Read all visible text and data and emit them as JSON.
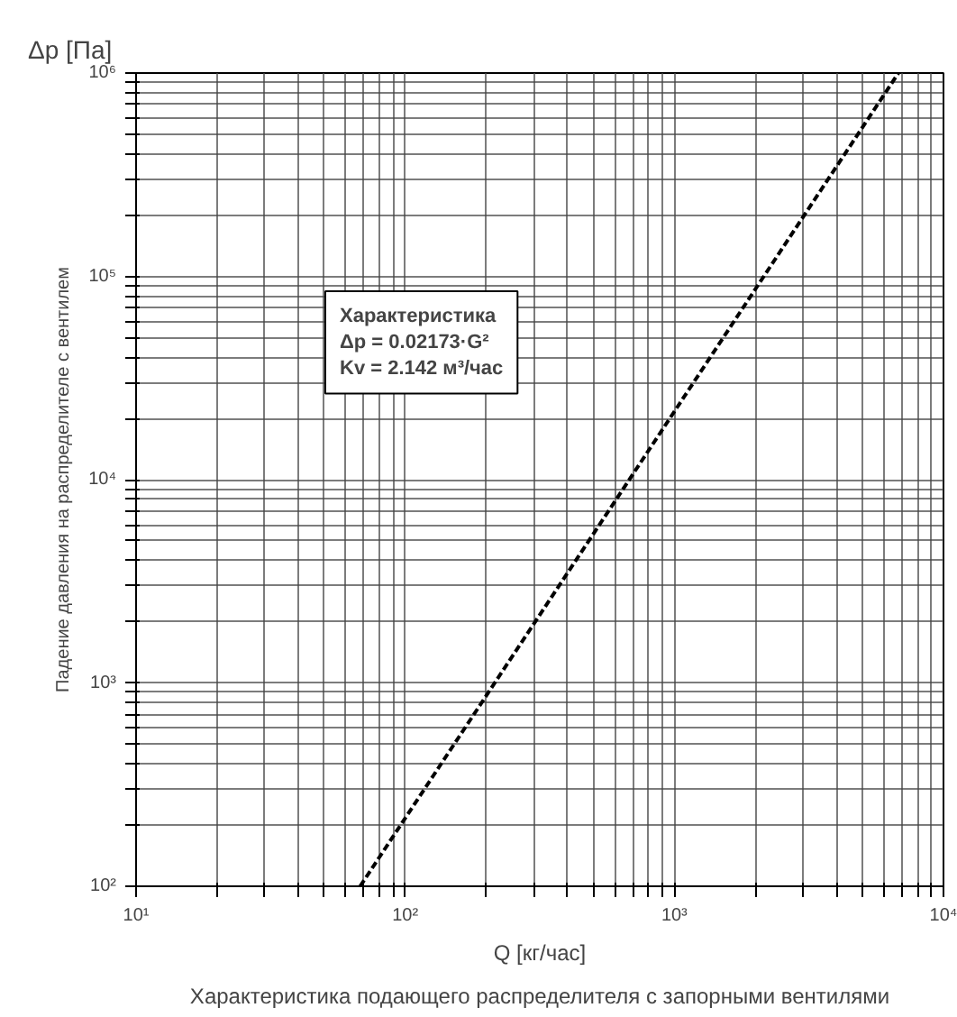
{
  "chart_data": {
    "type": "line",
    "xlabel": "Q [кг/час]",
    "ylabel": "Падение давления на распределителе с вентилем",
    "annotations": [
      "Характеристика\nΔp = 0.02173·G²\nKv = 2.142 м³/час",
      "Δp [Па]",
      "Характеристика подающего распределителя с запорными вентилями"
    ],
    "series": [
      {
        "color": "#000000",
        "x": [
          68,
          6800
        ],
        "values": [
          100,
          1000000
        ]
      }
    ],
    "log": "xy",
    "grid": true,
    "marker": "none",
    "line_style": "dashed",
    "xlim": [
      10,
      10000
    ],
    "xticks": [
      {
        "value": 10,
        "label": "10¹"
      },
      {
        "value": 20,
        "label": null
      },
      {
        "value": 30,
        "label": null
      },
      {
        "value": 40,
        "label": null
      },
      {
        "value": 50,
        "label": null
      },
      {
        "value": 60,
        "label": null
      },
      {
        "value": 70,
        "label": null
      },
      {
        "value": 80,
        "label": null
      },
      {
        "value": 90,
        "label": null
      },
      {
        "value": 100,
        "label": "10²"
      },
      {
        "value": 200,
        "label": null
      },
      {
        "value": 300,
        "label": null
      },
      {
        "value": 400,
        "label": null
      },
      {
        "value": 500,
        "label": null
      },
      {
        "value": 600,
        "label": null
      },
      {
        "value": 700,
        "label": null
      },
      {
        "value": 800,
        "label": null
      },
      {
        "value": 900,
        "label": null
      },
      {
        "value": 1000,
        "label": "10³"
      },
      {
        "value": 2000,
        "label": null
      },
      {
        "value": 3000,
        "label": null
      },
      {
        "value": 4000,
        "label": null
      },
      {
        "value": 5000,
        "label": null
      },
      {
        "value": 6000,
        "label": null
      },
      {
        "value": 7000,
        "label": null
      },
      {
        "value": 8000,
        "label": null
      },
      {
        "value": 9000,
        "label": null
      },
      {
        "value": 10000,
        "label": "10⁴"
      }
    ],
    "ylim": [
      100,
      1000000
    ],
    "yticks": [
      {
        "value": 100,
        "label": "10²"
      },
      {
        "value": 200,
        "label": null
      },
      {
        "value": 300,
        "label": null
      },
      {
        "value": 400,
        "label": null
      },
      {
        "value": 500,
        "label": null
      },
      {
        "value": 600,
        "label": null
      },
      {
        "value": 700,
        "label": null
      },
      {
        "value": 800,
        "label": null
      },
      {
        "value": 900,
        "label": null
      },
      {
        "value": 1000,
        "label": "10³"
      },
      {
        "value": 2000,
        "label": null
      },
      {
        "value": 3000,
        "label": null
      },
      {
        "value": 4000,
        "label": null
      },
      {
        "value": 5000,
        "label": null
      },
      {
        "value": 6000,
        "label": null
      },
      {
        "value": 7000,
        "label": null
      },
      {
        "value": 8000,
        "label": null
      },
      {
        "value": 9000,
        "label": null
      },
      {
        "value": 10000,
        "label": "10⁴"
      },
      {
        "value": 20000,
        "label": null
      },
      {
        "value": 30000,
        "label": null
      },
      {
        "value": 40000,
        "label": null
      },
      {
        "value": 50000,
        "label": null
      },
      {
        "value": 60000,
        "label": null
      },
      {
        "value": 70000,
        "label": null
      },
      {
        "value": 80000,
        "label": null
      },
      {
        "value": 90000,
        "label": null
      },
      {
        "value": 100000,
        "label": "10⁵"
      },
      {
        "value": 200000,
        "label": null
      },
      {
        "value": 300000,
        "label": null
      },
      {
        "value": 400000,
        "label": null
      },
      {
        "value": 500000,
        "label": null
      },
      {
        "value": 600000,
        "label": null
      },
      {
        "value": 700000,
        "label": null
      },
      {
        "value": 800000,
        "label": null
      },
      {
        "value": 900000,
        "label": null
      },
      {
        "value": 1000000,
        "label": "10⁶"
      }
    ]
  }
}
